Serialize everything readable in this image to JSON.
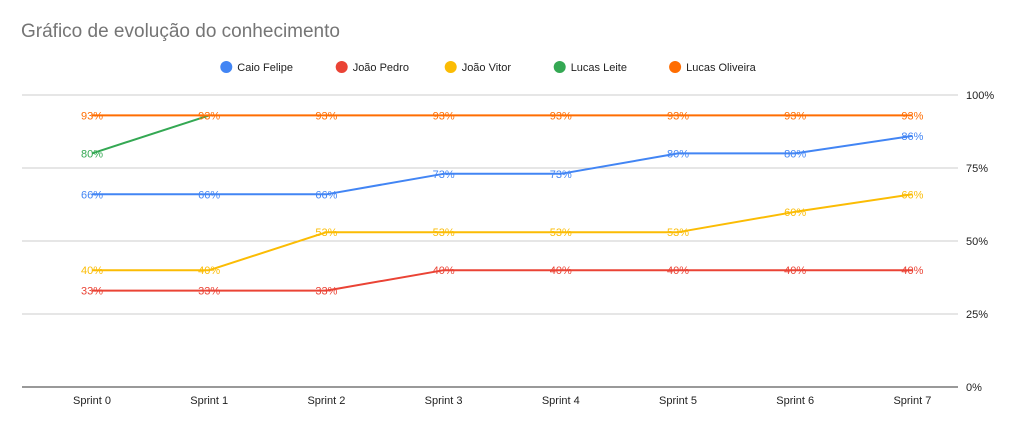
{
  "chart_data": {
    "type": "line",
    "title": "Gráfico de evolução do conhecimento",
    "xlabel": "",
    "ylabel": "",
    "categories": [
      "Sprint 0",
      "Sprint 1",
      "Sprint 2",
      "Sprint 3",
      "Sprint 4",
      "Sprint 5",
      "Sprint 6",
      "Sprint 7"
    ],
    "ylim": [
      0,
      100
    ],
    "yticks": [
      0,
      25,
      50,
      75,
      100
    ],
    "ytick_labels": [
      "0%",
      "25%",
      "50%",
      "75%",
      "100%"
    ],
    "y_axis_side": "right",
    "grid": true,
    "legend_position": "top",
    "series": [
      {
        "name": "Caio Felipe",
        "color": "#4285F4",
        "values": [
          66,
          66,
          66,
          73,
          73,
          80,
          80,
          86
        ],
        "labels": [
          "66%",
          "66%",
          "66%",
          "73%",
          "73%",
          "80%",
          "80%",
          "86%"
        ]
      },
      {
        "name": "João Pedro",
        "color": "#EA4335",
        "values": [
          33,
          33,
          33,
          40,
          40,
          40,
          40,
          40
        ],
        "labels": [
          "33%",
          "33%",
          "33%",
          "40%",
          "40%",
          "40%",
          "40%",
          "40%"
        ]
      },
      {
        "name": "João Vitor",
        "color": "#FBBC04",
        "values": [
          40,
          40,
          53,
          53,
          53,
          53,
          60,
          66
        ],
        "labels": [
          "40%",
          "40%",
          "53%",
          "53%",
          "53%",
          "53%",
          "60%",
          "66%"
        ]
      },
      {
        "name": "Lucas Leite",
        "color": "#34A853",
        "values": [
          80,
          93,
          null,
          null,
          null,
          null,
          null,
          null
        ],
        "labels": [
          "80%",
          "",
          "",
          "",
          "",
          "",
          "",
          ""
        ]
      },
      {
        "name": "Lucas Oliveira",
        "color": "#FF6D01",
        "values": [
          93,
          93,
          93,
          93,
          93,
          93,
          93,
          93
        ],
        "labels": [
          "93%",
          "93%",
          "93%",
          "93%",
          "93%",
          "93%",
          "93%",
          "93%"
        ]
      }
    ]
  }
}
